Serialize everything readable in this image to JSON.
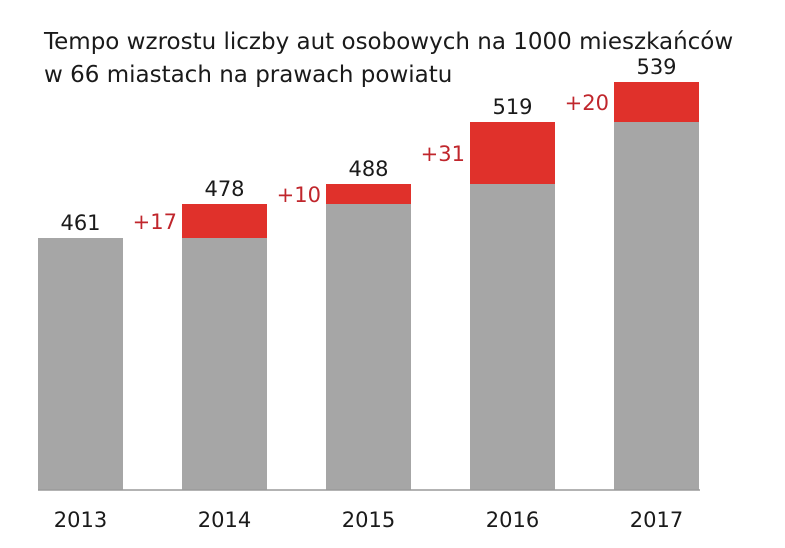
{
  "title_lines": [
    "Tempo wzrostu liczby aut osobowych na 1000 mieszkańców",
    "w 66 miastach na prawach powiatu"
  ],
  "colors": {
    "base": "#a6a6a6",
    "increase": "#e0312b",
    "text": "#1a1a1a",
    "increase_text": "#c0262c",
    "axis": "#9a9a9a"
  },
  "chart_data": {
    "type": "bar",
    "categories": [
      "2013",
      "2014",
      "2015",
      "2016",
      "2017"
    ],
    "series": [
      {
        "values": [
          461,
          461,
          478,
          488,
          519
        ]
      },
      {
        "values": [
          0,
          17,
          10,
          31,
          20
        ]
      }
    ],
    "totals": [
      "461",
      "478",
      "488",
      "519",
      "539"
    ],
    "increase_labels": [
      "",
      "+17",
      "+10",
      "+31",
      "+20"
    ],
    "title": "Tempo wzrostu liczby aut osobowych na 1000 mieszkańców w 66 miastach na prawach powiatu",
    "xlabel": "",
    "ylabel": "",
    "grid": false,
    "legend": "none"
  }
}
